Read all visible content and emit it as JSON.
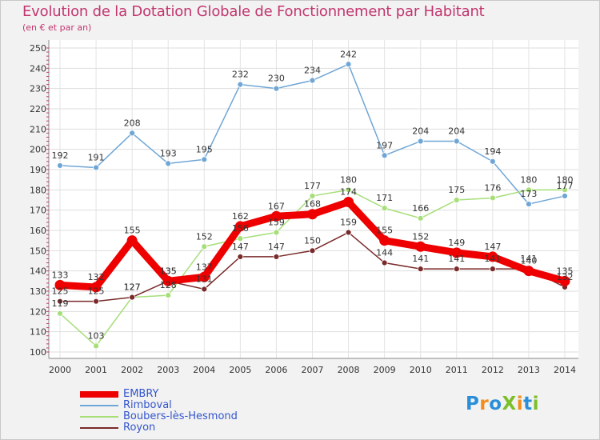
{
  "title": "Evolution de la Dotation Globale de Fonctionnement par Habitant",
  "subtitle": "(en € et par an)",
  "logo": {
    "text": "ProXiti",
    "letters": [
      "P",
      "r",
      "o",
      "X",
      "i",
      "t",
      "i"
    ],
    "colors": [
      "#2a8fd8",
      "#f28c1a",
      "#2a8fd8",
      "#7bbf2a",
      "#f28c1a",
      "#2a8fd8",
      "#7bbf2a"
    ]
  },
  "chart_data": {
    "type": "line",
    "x": [
      "2000",
      "2001",
      "2002",
      "2003",
      "2004",
      "2005",
      "2006",
      "2007",
      "2008",
      "2009",
      "2010",
      "2011",
      "2012",
      "2013",
      "2014"
    ],
    "ylim": [
      100,
      250
    ],
    "yticks": [
      100,
      110,
      120,
      130,
      140,
      150,
      160,
      170,
      180,
      190,
      200,
      210,
      220,
      230,
      240,
      250
    ],
    "grid": true,
    "legend_position": "bottom-left",
    "series": [
      {
        "name": "EMBRY",
        "color": "#ee0000",
        "values": [
          133,
          132,
          155,
          135,
          137,
          162,
          167,
          168,
          174,
          155,
          152,
          149,
          147,
          140,
          135
        ]
      },
      {
        "name": "Rimboval",
        "color": "#6fa6d6",
        "values": [
          192,
          191,
          208,
          193,
          195,
          232,
          230,
          234,
          242,
          197,
          204,
          204,
          194,
          173,
          177
        ]
      },
      {
        "name": "Boubers-lès-Hesmond",
        "color": "#a6de78",
        "values": [
          119,
          103,
          127,
          128,
          152,
          156,
          159,
          177,
          180,
          171,
          166,
          175,
          176,
          180,
          180
        ]
      },
      {
        "name": "Royon",
        "color": "#7a2a2a",
        "values": [
          125,
          125,
          127,
          135,
          131,
          147,
          147,
          150,
          159,
          144,
          141,
          141,
          141,
          141,
          132
        ]
      }
    ]
  }
}
